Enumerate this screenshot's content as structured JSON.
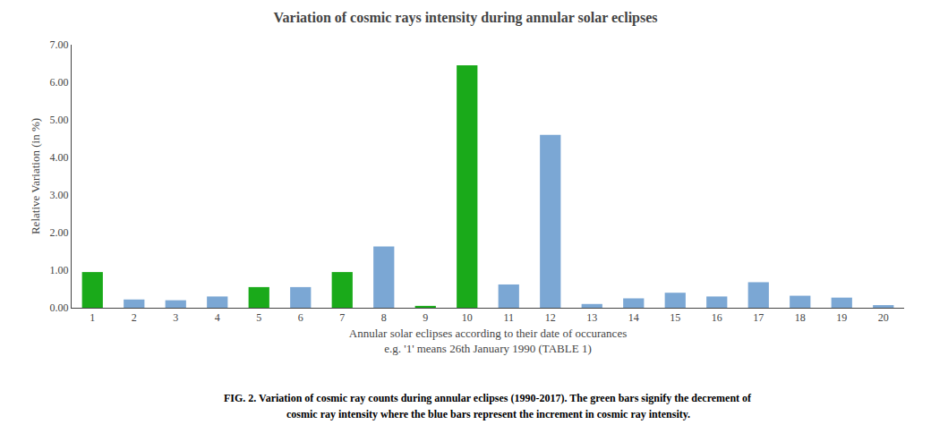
{
  "chart_data": {
    "type": "bar",
    "title": "Variation of cosmic rays intensity during annular solar eclipses",
    "xlabel": [
      "Annular solar eclipses according to their date of occurances",
      "e.g. '1' means 26th January 1990 (TABLE 1)"
    ],
    "ylabel": "Relative Variation (in %)",
    "categories": [
      1,
      2,
      3,
      4,
      5,
      6,
      7,
      8,
      9,
      10,
      11,
      12,
      13,
      14,
      15,
      16,
      17,
      18,
      19,
      20
    ],
    "values": [
      0.95,
      0.22,
      0.2,
      0.3,
      0.55,
      0.55,
      0.95,
      1.63,
      0.05,
      6.45,
      0.62,
      4.6,
      0.1,
      0.25,
      0.4,
      0.3,
      0.68,
      0.32,
      0.27,
      0.07
    ],
    "colors": [
      "#1aaa1a",
      "#7ba7d4",
      "#7ba7d4",
      "#7ba7d4",
      "#1aaa1a",
      "#7ba7d4",
      "#1aaa1a",
      "#7ba7d4",
      "#1aaa1a",
      "#1aaa1a",
      "#7ba7d4",
      "#7ba7d4",
      "#7ba7d4",
      "#7ba7d4",
      "#7ba7d4",
      "#7ba7d4",
      "#7ba7d4",
      "#7ba7d4",
      "#7ba7d4",
      "#7ba7d4"
    ],
    "ylim": [
      0,
      7.0
    ],
    "yticks": [
      {
        "value": 0,
        "label": "0.00"
      },
      {
        "value": 1,
        "label": "1.00"
      },
      {
        "value": 2,
        "label": "2.00"
      },
      {
        "value": 3,
        "label": "3.00"
      },
      {
        "value": 4,
        "label": "4.00"
      },
      {
        "value": 5,
        "label": "5.00"
      },
      {
        "value": 6,
        "label": "6.00"
      },
      {
        "value": 7,
        "label": "7.00"
      }
    ],
    "grid": false,
    "annotations": [
      "FIG. 2. Variation of cosmic ray counts during annular eclipses (1990-2017). The green bars signify the decrement of",
      "cosmic ray intensity where the blue bars represent the increment in cosmic ray intensity."
    ]
  }
}
